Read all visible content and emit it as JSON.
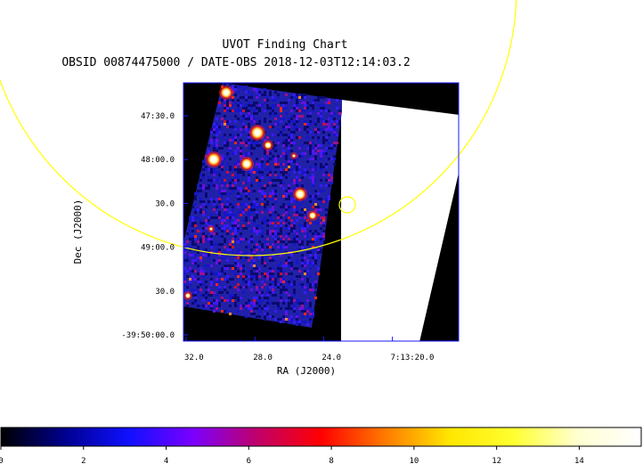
{
  "title": "UVOT Finding Chart",
  "subtitle": "OBSID 00874475000 / DATE-OBS 2018-12-03T12:14:03.2",
  "x_axis": {
    "label": "RA (J2000)",
    "ticks": [
      {
        "label": "32.0",
        "ra_sec": 32.0
      },
      {
        "label": "28.0",
        "ra_sec": 28.0
      },
      {
        "label": "24.0",
        "ra_sec": 24.0
      },
      {
        "label": "7:13:20.0",
        "ra_sec": 20.0
      }
    ]
  },
  "y_axis": {
    "label": "Dec (J2000)",
    "ticks": [
      {
        "label": "47:30.0",
        "dec_arcsec": 90
      },
      {
        "label": "48:00.0",
        "dec_arcsec": 120
      },
      {
        "label": "30.0",
        "dec_arcsec": 150
      },
      {
        "label": "49:00.0",
        "dec_arcsec": 180
      },
      {
        "label": "30.0",
        "dec_arcsec": 210
      },
      {
        "label": "-39:50:00.0",
        "dec_arcsec": 240
      }
    ]
  },
  "colorbar": {
    "min": 0,
    "max": 15.5,
    "ticks": [
      {
        "label": "0",
        "value": 0
      },
      {
        "label": "2",
        "value": 2
      },
      {
        "label": "4",
        "value": 4
      },
      {
        "label": "6",
        "value": 6
      },
      {
        "label": "8",
        "value": 8
      },
      {
        "label": "10",
        "value": 10
      },
      {
        "label": "12",
        "value": 12
      },
      {
        "label": "14",
        "value": 14
      }
    ],
    "colors": [
      "#000000",
      "#00008f",
      "#1010ff",
      "#7a00ff",
      "#c0006a",
      "#ff0000",
      "#ff7a00",
      "#ffe600",
      "#ffff30",
      "#ffffd0",
      "#ffffff"
    ]
  },
  "colors": {
    "frame": "#1a1aff",
    "circle": "#ffff00",
    "sky": "#2121a8",
    "exposed_white": "#ffffff"
  }
}
